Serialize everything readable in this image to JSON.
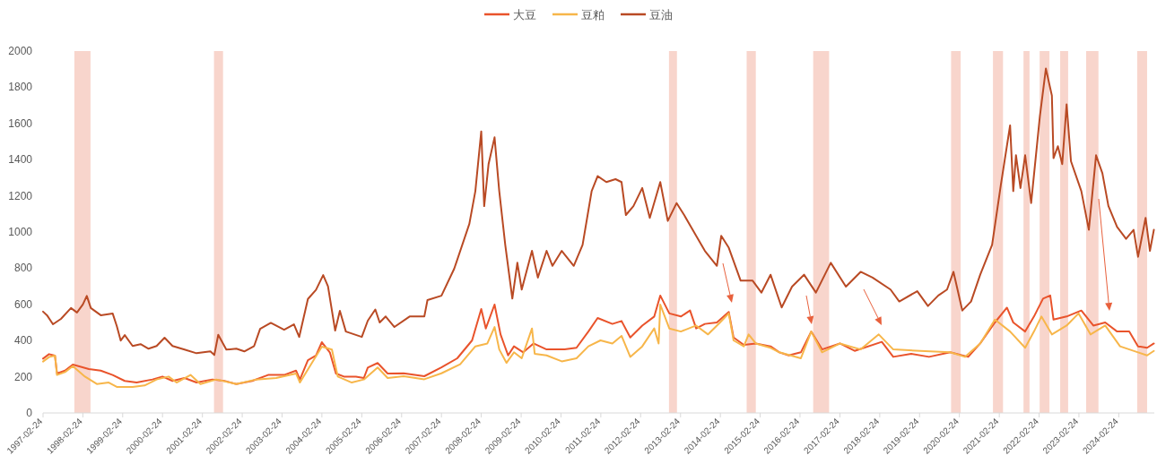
{
  "chart_data": {
    "type": "line",
    "legend": "top",
    "grid": false,
    "xlim": [
      "1997-02-24",
      "2025-01-15"
    ],
    "xticks": [
      "1997-02-24",
      "1998-02-24",
      "1999-02-24",
      "2000-02-24",
      "2001-02-24",
      "2002-02-24",
      "2003-02-24",
      "2004-02-24",
      "2005-02-24",
      "2006-02-24",
      "2007-02-24",
      "2008-02-24",
      "2009-02-24",
      "2010-02-24",
      "2011-02-24",
      "2012-02-24",
      "2013-02-24",
      "2014-02-24",
      "2015-02-24",
      "2016-02-24",
      "2017-02-24",
      "2018-02-24",
      "2019-02-24",
      "2020-02-24",
      "2021-02-24",
      "2022-02-24",
      "2023-02-24",
      "2024-02-24"
    ],
    "ylim": [
      0,
      2000
    ],
    "yticks": [
      0,
      200,
      400,
      600,
      800,
      1000,
      1200,
      1400,
      1600,
      1800,
      2000
    ],
    "bands": [
      {
        "axis": "x",
        "from": "1997-12-08",
        "to": "1998-05-05",
        "color": "#f8d5cc"
      },
      {
        "axis": "x",
        "from": "2001-06-10",
        "to": "2001-09-01",
        "color": "#f8d5cc"
      },
      {
        "axis": "x",
        "from": "2012-11-10",
        "to": "2013-01-22",
        "color": "#f8d5cc"
      },
      {
        "axis": "x",
        "from": "2014-10-23",
        "to": "2015-01-15",
        "color": "#f8d5cc"
      },
      {
        "axis": "x",
        "from": "2016-06-24",
        "to": "2016-11-17",
        "color": "#f8d5cc"
      },
      {
        "axis": "x",
        "from": "2019-12-10",
        "to": "2020-03-07",
        "color": "#f8d5cc"
      },
      {
        "axis": "x",
        "from": "2020-12-28",
        "to": "2021-03-30",
        "color": "#f8d5cc"
      },
      {
        "axis": "x",
        "from": "2021-10-04",
        "to": "2021-11-28",
        "color": "#f8d5cc"
      },
      {
        "axis": "x",
        "from": "2022-03-01",
        "to": "2022-05-30",
        "color": "#f8d5cc"
      },
      {
        "axis": "x",
        "from": "2022-09-05",
        "to": "2022-11-17",
        "color": "#f8d5cc"
      },
      {
        "axis": "x",
        "from": "2023-05-01",
        "to": "2023-08-22",
        "color": "#f8d5cc"
      },
      {
        "axis": "x",
        "from": "2024-08-11",
        "to": "2024-11-10",
        "color": "#f8d5cc"
      }
    ],
    "series": [
      {
        "name": "大豆",
        "color": "#e9532b",
        "x": [
          "1997-02-24",
          "1997-04-20",
          "1997-06-13",
          "1997-07-02",
          "1997-09-13",
          "1997-11-24",
          "1998-04-20",
          "1998-08-07",
          "1998-11-24",
          "1999-03-15",
          "1999-07-02",
          "1999-11-24",
          "2000-02-24",
          "2000-05-26",
          "2000-09-13",
          "2001-01-01",
          "2001-05-26",
          "2001-09-13",
          "2002-01-01",
          "2002-05-26",
          "2002-10-19",
          "2003-03-15",
          "2003-07-02",
          "2003-08-07",
          "2003-10-19",
          "2004-01-01",
          "2004-02-24",
          "2004-05-08",
          "2004-07-02",
          "2004-09-13",
          "2005-01-01",
          "2005-03-15",
          "2005-04-20",
          "2005-07-19",
          "2005-10-19",
          "2006-03-15",
          "2006-09-20",
          "2007-02-24",
          "2007-07-19",
          "2007-12-02",
          "2008-02-24",
          "2008-04-06",
          "2008-06-25",
          "2008-08-19",
          "2008-10-27",
          "2008-12-20",
          "2009-03-15",
          "2009-06-17",
          "2009-10-15",
          "2010-03-29",
          "2010-07-16",
          "2010-11-02",
          "2011-01-26",
          "2011-06-10",
          "2011-09-02",
          "2011-11-21",
          "2012-03-10",
          "2012-06-28",
          "2012-08-22",
          "2012-11-13",
          "2013-02-27",
          "2013-05-22",
          "2013-07-17",
          "2013-10-05",
          "2014-01-23",
          "2014-05-12",
          "2014-06-25",
          "2014-09-27",
          "2015-01-15",
          "2015-05-30",
          "2015-08-19",
          "2015-11-13",
          "2016-03-03",
          "2016-06-06",
          "2016-09-13",
          "2017-02-24",
          "2017-07-09",
          "2018-03-15",
          "2018-06-28",
          "2018-12-09",
          "2019-05-22",
          "2019-12-02",
          "2020-05-15",
          "2020-09-02",
          "2021-01-15",
          "2021-05-05",
          "2021-07-02",
          "2021-10-19",
          "2022-01-08",
          "2022-04-01",
          "2022-06-06",
          "2022-07-06",
          "2022-11-03",
          "2023-03-18",
          "2023-07-06",
          "2023-10-23",
          "2024-02-09",
          "2024-05-30",
          "2024-08-19",
          "2024-11-10",
          "2025-01-11"
        ],
        "values": [
          300,
          325,
          317,
          218,
          234,
          267,
          243,
          234,
          210,
          177,
          168,
          185,
          201,
          177,
          193,
          168,
          185,
          177,
          160,
          177,
          210,
          210,
          234,
          185,
          292,
          317,
          391,
          333,
          218,
          201,
          201,
          193,
          251,
          276,
          218,
          219,
          203,
          252,
          302,
          401,
          574,
          467,
          599,
          434,
          318,
          368,
          335,
          384,
          351,
          351,
          360,
          450,
          525,
          492,
          508,
          417,
          483,
          533,
          649,
          550,
          533,
          566,
          467,
          492,
          500,
          558,
          417,
          376,
          384,
          368,
          335,
          318,
          335,
          450,
          351,
          384,
          343,
          393,
          310,
          327,
          310,
          335,
          310,
          384,
          500,
          582,
          500,
          450,
          533,
          632,
          649,
          516,
          533,
          566,
          483,
          500,
          450,
          450,
          368,
          360,
          384
        ]
      },
      {
        "name": "豆粕",
        "color": "#f7b64a",
        "x": [
          "1997-02-24",
          "1997-04-20",
          "1997-06-13",
          "1997-07-02",
          "1997-09-13",
          "1997-11-24",
          "1998-03-15",
          "1998-07-02",
          "1998-10-19",
          "1999-01-01",
          "1999-05-26",
          "1999-09-13",
          "2000-01-01",
          "2000-04-20",
          "2000-07-02",
          "2000-11-07",
          "2001-02-06",
          "2001-07-02",
          "2002-01-01",
          "2002-07-02",
          "2003-01-01",
          "2003-07-02",
          "2003-08-07",
          "2003-11-24",
          "2004-02-24",
          "2004-05-26",
          "2004-07-19",
          "2004-11-24",
          "2005-03-15",
          "2005-07-19",
          "2005-10-19",
          "2006-03-15",
          "2006-09-20",
          "2007-02-24",
          "2007-08-15",
          "2008-01-01",
          "2008-04-20",
          "2008-06-25",
          "2008-08-07",
          "2008-10-12",
          "2008-12-20",
          "2009-03-01",
          "2009-06-03",
          "2009-06-28",
          "2009-10-15",
          "2010-03-03",
          "2010-07-16",
          "2010-11-02",
          "2011-02-21",
          "2011-06-10",
          "2011-09-02",
          "2011-11-21",
          "2012-03-10",
          "2012-06-28",
          "2012-08-07",
          "2012-08-22",
          "2012-11-13",
          "2013-02-27",
          "2013-07-17",
          "2013-11-03",
          "2014-02-21",
          "2014-05-12",
          "2014-06-25",
          "2014-09-27",
          "2014-11-10",
          "2015-01-15",
          "2015-05-30",
          "2015-08-19",
          "2016-03-03",
          "2016-06-06",
          "2016-09-13",
          "2017-02-24",
          "2017-09-02",
          "2018-02-15",
          "2018-06-28",
          "2019-03-03",
          "2019-12-02",
          "2020-04-15",
          "2020-09-02",
          "2021-01-15",
          "2021-06-03",
          "2021-10-19",
          "2022-01-08",
          "2022-03-17",
          "2022-06-21",
          "2022-11-03",
          "2023-02-21",
          "2023-06-10",
          "2023-10-23",
          "2024-03-07",
          "2024-08-19",
          "2024-11-10",
          "2025-01-11"
        ],
        "values": [
          284,
          309,
          317,
          210,
          226,
          259,
          201,
          160,
          168,
          144,
          144,
          152,
          185,
          201,
          168,
          210,
          160,
          185,
          160,
          185,
          193,
          218,
          168,
          276,
          366,
          350,
          201,
          168,
          185,
          251,
          193,
          203,
          186,
          219,
          269,
          368,
          384,
          475,
          351,
          277,
          335,
          302,
          467,
          327,
          318,
          285,
          302,
          368,
          401,
          384,
          426,
          310,
          368,
          467,
          384,
          599,
          467,
          450,
          483,
          434,
          500,
          550,
          401,
          368,
          434,
          384,
          360,
          335,
          302,
          450,
          335,
          384,
          351,
          434,
          351,
          343,
          335,
          310,
          384,
          516,
          450,
          360,
          450,
          533,
          434,
          483,
          550,
          434,
          483,
          368,
          335,
          318,
          343
        ]
      },
      {
        "name": "豆油",
        "color": "#b94a24",
        "x": [
          "1997-02-24",
          "1997-04-01",
          "1997-05-26",
          "1997-08-07",
          "1997-11-07",
          "1998-01-01",
          "1998-02-24",
          "1998-04-01",
          "1998-05-08",
          "1998-08-07",
          "1998-11-24",
          "1999-01-01",
          "1999-02-06",
          "1999-03-15",
          "1999-05-26",
          "1999-08-07",
          "1999-10-19",
          "2000-01-01",
          "2000-03-14",
          "2000-05-26",
          "2000-09-13",
          "2001-01-01",
          "2001-05-08",
          "2001-06-13",
          "2001-07-19",
          "2001-10-01",
          "2002-01-01",
          "2002-03-15",
          "2002-06-13",
          "2002-08-07",
          "2002-11-13",
          "2003-03-15",
          "2003-06-13",
          "2003-07-31",
          "2003-10-19",
          "2004-01-01",
          "2004-03-07",
          "2004-04-20",
          "2004-06-25",
          "2004-08-07",
          "2004-10-01",
          "2005-02-24",
          "2005-04-20",
          "2005-06-28",
          "2005-08-07",
          "2005-10-01",
          "2005-12-20",
          "2006-05-08",
          "2006-09-20",
          "2006-10-19",
          "2007-02-24",
          "2007-06-21",
          "2007-11-07",
          "2008-01-01",
          "2008-02-24",
          "2008-03-22",
          "2008-05-01",
          "2008-06-25",
          "2008-08-07",
          "2008-10-01",
          "2008-12-05",
          "2009-01-20",
          "2009-03-01",
          "2009-06-03",
          "2009-07-27",
          "2009-10-15",
          "2009-12-08",
          "2010-03-03",
          "2010-06-21",
          "2010-09-10",
          "2010-12-02",
          "2011-01-26",
          "2011-04-16",
          "2011-07-09",
          "2011-09-02",
          "2011-10-12",
          "2011-12-20",
          "2012-03-10",
          "2012-05-18",
          "2012-08-22",
          "2012-10-30",
          "2013-01-19",
          "2013-03-29",
          "2013-07-17",
          "2013-10-05",
          "2014-01-23",
          "2014-03-04",
          "2014-05-12",
          "2014-08-29",
          "2014-12-17",
          "2015-03-07",
          "2015-05-30",
          "2015-09-09",
          "2015-12-13",
          "2016-04-01",
          "2016-07-19",
          "2016-12-02",
          "2017-04-20",
          "2017-09-02",
          "2017-12-20",
          "2018-06-03",
          "2018-08-22",
          "2019-02-03",
          "2019-05-12",
          "2019-08-15",
          "2019-11-03",
          "2020-01-01",
          "2020-03-22",
          "2020-06-10",
          "2020-09-02",
          "2020-12-20",
          "2021-03-10",
          "2021-06-03",
          "2021-07-02",
          "2021-07-27",
          "2021-09-06",
          "2021-10-19",
          "2021-12-13",
          "2022-03-03",
          "2022-04-27",
          "2022-06-21",
          "2022-07-06",
          "2022-08-15",
          "2022-09-24",
          "2022-11-03",
          "2022-12-13",
          "2023-03-18",
          "2023-05-26",
          "2023-07-31",
          "2023-09-27",
          "2023-11-21",
          "2024-02-09",
          "2024-05-01",
          "2024-07-09",
          "2024-08-19",
          "2024-10-27",
          "2024-12-06",
          "2025-01-11"
        ],
        "values": [
          560,
          540,
          490,
          520,
          580,
          555,
          600,
          647,
          580,
          540,
          550,
          480,
          400,
          430,
          370,
          380,
          355,
          370,
          416,
          370,
          350,
          330,
          340,
          320,
          432,
          350,
          355,
          340,
          370,
          465,
          498,
          460,
          490,
          420,
          630,
          680,
          762,
          700,
          455,
          564,
          450,
          420,
          510,
          572,
          500,
          533,
          475,
          533,
          533,
          624,
          648,
          797,
          1045,
          1226,
          1556,
          1143,
          1375,
          1523,
          1226,
          929,
          632,
          830,
          682,
          896,
          748,
          896,
          813,
          896,
          813,
          929,
          1226,
          1309,
          1276,
          1292,
          1276,
          1094,
          1143,
          1243,
          1078,
          1276,
          1061,
          1160,
          1094,
          979,
          896,
          813,
          979,
          913,
          731,
          731,
          665,
          764,
          583,
          698,
          764,
          665,
          830,
          698,
          780,
          748,
          682,
          616,
          673,
          591,
          649,
          682,
          780,
          566,
          616,
          764,
          929,
          1259,
          1589,
          1226,
          1424,
          1243,
          1424,
          1160,
          1639,
          1903,
          1754,
          1408,
          1474,
          1375,
          1705,
          1391,
          1226,
          1012,
          1424,
          1325,
          1144,
          1028,
          962,
          1012,
          863,
          1078,
          896,
          1012
        ]
      }
    ]
  }
}
